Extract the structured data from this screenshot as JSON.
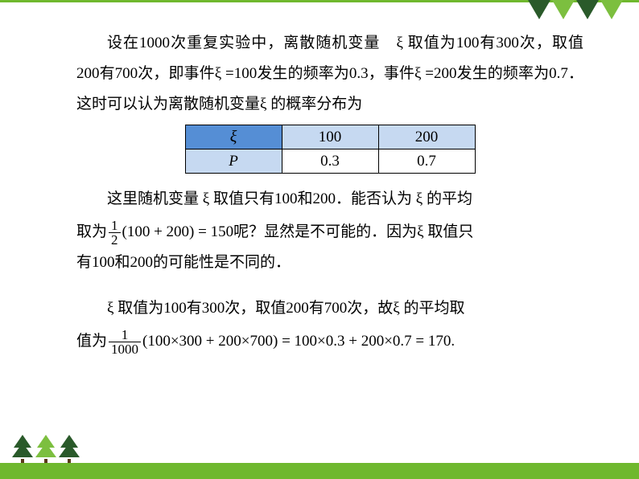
{
  "decoration": {
    "accent_green": "#6fb82e",
    "dark_green": "#2a5a2a",
    "light_green": "#7cbf3f",
    "trunk_color": "#5a3a1a"
  },
  "para1": {
    "text": "设在1000次重复实验中，离散随机变量　ξ 取值为100有300次，取值200有700次，即事件ξ =100发生的频率为0.3，事件ξ =200发生的频率为0.7．这时可以认为离散随机变量ξ 的概率分布为"
  },
  "table": {
    "header_bg1": "#558ed5",
    "header_bg2": "#c6d9f1",
    "row1": {
      "label": "ξ",
      "v1": "100",
      "v2": "200"
    },
    "row2": {
      "label": "P",
      "v1": "0.3",
      "v2": "0.7"
    }
  },
  "para2": {
    "line1": "这里随机变量 ξ 取值只有100和200．能否认为 ξ 的平均",
    "line2a": "取为",
    "frac1_num": "1",
    "frac1_den": "2",
    "expr1": "(100 + 200) = 150",
    "line2b": "呢？显然是不可能的．因为ξ 取值只",
    "line3": "有100和200的可能性是不同的．"
  },
  "para3": {
    "line1": "ξ 取值为100有300次，取值200有700次，故ξ  的平均取",
    "line2a": "值为",
    "frac2_num": "1",
    "frac2_den": "1000",
    "expr2": "(100×300 + 200×700) = 100×0.3 + 200×0.7 = 170."
  }
}
